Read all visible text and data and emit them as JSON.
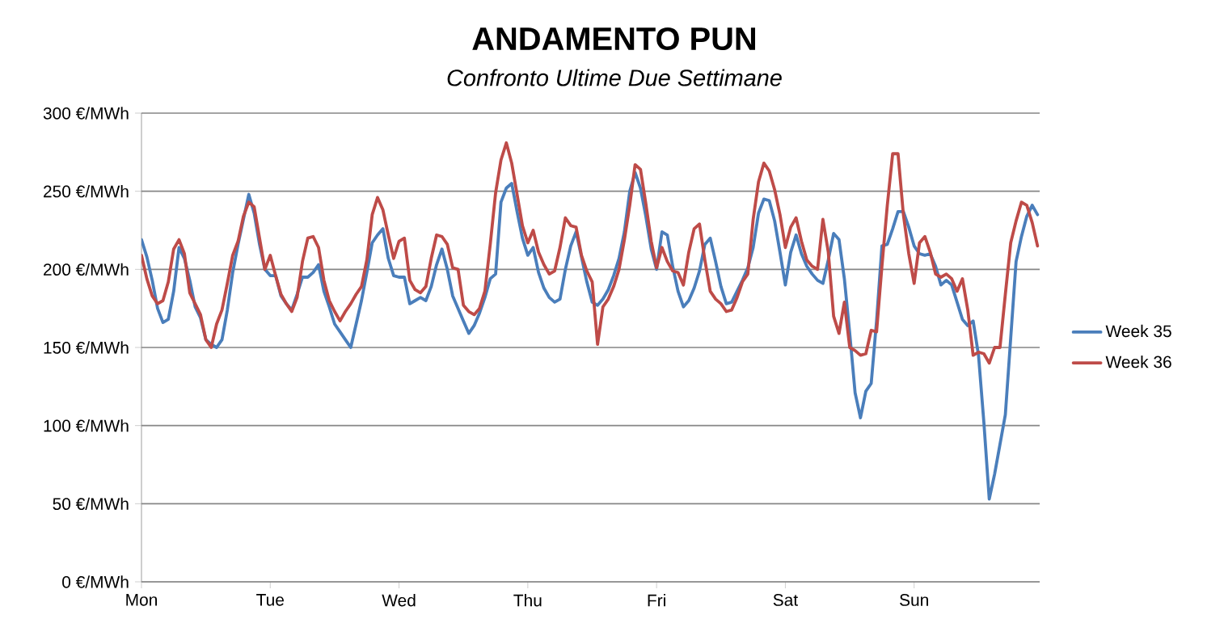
{
  "chart_data": {
    "type": "line",
    "title": "ANDAMENTO PUN",
    "subtitle": "Confronto Ultime Due Settimane",
    "categories": [
      "Mon",
      null,
      null,
      null,
      null,
      null,
      null,
      null,
      null,
      null,
      null,
      null,
      null,
      null,
      null,
      null,
      null,
      null,
      null,
      null,
      null,
      null,
      null,
      null,
      "Tue",
      null,
      null,
      null,
      null,
      null,
      null,
      null,
      null,
      null,
      null,
      null,
      null,
      null,
      null,
      null,
      null,
      null,
      null,
      null,
      null,
      null,
      null,
      null,
      "Wed",
      null,
      null,
      null,
      null,
      null,
      null,
      null,
      null,
      null,
      null,
      null,
      null,
      null,
      null,
      null,
      null,
      null,
      null,
      null,
      null,
      null,
      null,
      null,
      "Thu",
      null,
      null,
      null,
      null,
      null,
      null,
      null,
      null,
      null,
      null,
      null,
      null,
      null,
      null,
      null,
      null,
      null,
      null,
      null,
      null,
      null,
      null,
      null,
      "Fri",
      null,
      null,
      null,
      null,
      null,
      null,
      null,
      null,
      null,
      null,
      null,
      null,
      null,
      null,
      null,
      null,
      null,
      null,
      null,
      null,
      null,
      null,
      null,
      "Sat",
      null,
      null,
      null,
      null,
      null,
      null,
      null,
      null,
      null,
      null,
      null,
      null,
      null,
      null,
      null,
      null,
      null,
      null,
      null,
      null,
      null,
      null,
      null,
      "Sun",
      null,
      null,
      null,
      null,
      null,
      null,
      null,
      null,
      null,
      null,
      null,
      null,
      null,
      null,
      null,
      null,
      null,
      null,
      null,
      null,
      null,
      null,
      null
    ],
    "ylim": [
      0,
      300
    ],
    "yticks": [
      {
        "value": 0,
        "label": "0 €/MWh"
      },
      {
        "value": 50,
        "label": "50 €/MWh"
      },
      {
        "value": 100,
        "label": "100 €/MWh"
      },
      {
        "value": 150,
        "label": "150 €/MWh"
      },
      {
        "value": 200,
        "label": "200 €/MWh"
      },
      {
        "value": 250,
        "label": "250 €/MWh"
      },
      {
        "value": 300,
        "label": "300 €/MWh"
      }
    ],
    "grid": "y",
    "legend": "right",
    "series": [
      {
        "name": "Week 35",
        "color": "#4a7ebb",
        "values": [
          219,
          208,
          193,
          175,
          166,
          168,
          186,
          214,
          207,
          193,
          176,
          169,
          155,
          152,
          150,
          155,
          174,
          198,
          216,
          232,
          248,
          236,
          216,
          200,
          196,
          196,
          183,
          178,
          174,
          184,
          195,
          195,
          198,
          203,
          186,
          176,
          165,
          160,
          155,
          150,
          165,
          180,
          198,
          217,
          222,
          226,
          207,
          196,
          195,
          195,
          178,
          180,
          182,
          180,
          189,
          203,
          213,
          200,
          183,
          175,
          167,
          159,
          164,
          172,
          182,
          194,
          197,
          243,
          252,
          255,
          237,
          220,
          209,
          214,
          198,
          188,
          182,
          179,
          181,
          200,
          215,
          224,
          208,
          192,
          179,
          177,
          181,
          187,
          196,
          207,
          224,
          250,
          262,
          252,
          234,
          213,
          200,
          224,
          222,
          202,
          186,
          176,
          180,
          188,
          199,
          216,
          220,
          205,
          189,
          178,
          179,
          186,
          193,
          201,
          214,
          236,
          245,
          244,
          231,
          211,
          190,
          211,
          222,
          210,
          202,
          197,
          193,
          191,
          206,
          223,
          219,
          194,
          159,
          121,
          105,
          122,
          127,
          167,
          215,
          216,
          226,
          237,
          237,
          227,
          215,
          210,
          209,
          210,
          202,
          190,
          193,
          190,
          179,
          168,
          164,
          167,
          145,
          102,
          53,
          69,
          88,
          107,
          156,
          205,
          221,
          234,
          241,
          235
        ]
      },
      {
        "name": "Week 36",
        "color": "#be4b48",
        "values": [
          209,
          194,
          183,
          178,
          180,
          192,
          213,
          219,
          210,
          185,
          178,
          171,
          155,
          150,
          165,
          174,
          191,
          209,
          218,
          234,
          243,
          240,
          220,
          200,
          209,
          196,
          184,
          178,
          173,
          182,
          205,
          220,
          221,
          214,
          193,
          180,
          173,
          167,
          173,
          178,
          184,
          189,
          206,
          235,
          246,
          238,
          222,
          207,
          218,
          220,
          193,
          187,
          185,
          189,
          207,
          222,
          221,
          216,
          201,
          200,
          177,
          173,
          171,
          175,
          186,
          216,
          249,
          270,
          281,
          268,
          248,
          228,
          217,
          225,
          211,
          203,
          197,
          199,
          214,
          233,
          228,
          227,
          209,
          199,
          192,
          152,
          176,
          181,
          189,
          200,
          219,
          241,
          267,
          264,
          242,
          218,
          201,
          214,
          205,
          199,
          198,
          190,
          211,
          226,
          229,
          206,
          186,
          181,
          178,
          173,
          174,
          182,
          192,
          197,
          232,
          256,
          268,
          263,
          251,
          235,
          214,
          227,
          233,
          218,
          206,
          202,
          200,
          232,
          211,
          170,
          159,
          179,
          150,
          148,
          145,
          146,
          161,
          160,
          202,
          241,
          274,
          274,
          235,
          210,
          191,
          217,
          221,
          211,
          197,
          195,
          197,
          194,
          186,
          194,
          174,
          145,
          147,
          146,
          140,
          150,
          150,
          184,
          217,
          231,
          243,
          241,
          230,
          215
        ]
      }
    ]
  }
}
